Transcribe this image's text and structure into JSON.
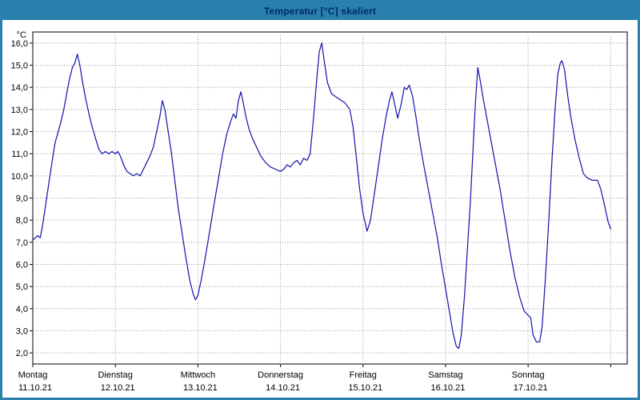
{
  "colors": {
    "frame": "#2a80ad",
    "title_text": "#002a68",
    "line": "#1111aa",
    "grid": "#9a9a9a",
    "axis": "#000000",
    "plot_bg": "#ffffff",
    "label_text": "#000000"
  },
  "chart_data": {
    "type": "line",
    "title": "Temperatur [°C] skaliert",
    "y_unit": "°C",
    "ylim": [
      1.5,
      16.5
    ],
    "xlim": [
      0,
      7.2
    ],
    "grid": true,
    "legend": "none",
    "yticks": [
      2,
      3,
      4,
      5,
      6,
      7,
      8,
      9,
      10,
      11,
      12,
      13,
      14,
      15,
      16
    ],
    "ytick_labels": [
      "2,0",
      "3,0",
      "4,0",
      "5,0",
      "6,0",
      "7,0",
      "8,0",
      "9,0",
      "10,0",
      "11,0",
      "12,0",
      "13,0",
      "14,0",
      "15,0",
      "16,0"
    ],
    "xticks": [
      0,
      1,
      2,
      3,
      4,
      5,
      6,
      7
    ],
    "x_gridlines": [
      1,
      2,
      3,
      4,
      5,
      6,
      7
    ],
    "x_categories": [
      {
        "day": "Montag",
        "date": "11.10.21",
        "x": 0
      },
      {
        "day": "Dienstag",
        "date": "12.10.21",
        "x": 1
      },
      {
        "day": "Mittwoch",
        "date": "13.10.21",
        "x": 2
      },
      {
        "day": "Donnerstag",
        "date": "14.10.21",
        "x": 3
      },
      {
        "day": "Freitag",
        "date": "15.10.21",
        "x": 4
      },
      {
        "day": "Samstag",
        "date": "16.10.21",
        "x": 5
      },
      {
        "day": "Sonntag",
        "date": "17.10.21",
        "x": 6
      }
    ],
    "series": [
      {
        "name": "Temperatur",
        "color": "#1111aa",
        "points": [
          [
            0.0,
            7.1
          ],
          [
            0.03,
            7.2
          ],
          [
            0.06,
            7.3
          ],
          [
            0.09,
            7.2
          ],
          [
            0.12,
            7.8
          ],
          [
            0.16,
            8.8
          ],
          [
            0.2,
            9.8
          ],
          [
            0.24,
            10.8
          ],
          [
            0.27,
            11.5
          ],
          [
            0.3,
            11.9
          ],
          [
            0.33,
            12.3
          ],
          [
            0.37,
            12.9
          ],
          [
            0.4,
            13.5
          ],
          [
            0.44,
            14.3
          ],
          [
            0.48,
            14.9
          ],
          [
            0.51,
            15.1
          ],
          [
            0.54,
            15.5
          ],
          [
            0.57,
            15.0
          ],
          [
            0.6,
            14.3
          ],
          [
            0.64,
            13.5
          ],
          [
            0.68,
            12.8
          ],
          [
            0.72,
            12.2
          ],
          [
            0.76,
            11.7
          ],
          [
            0.8,
            11.2
          ],
          [
            0.84,
            11.0
          ],
          [
            0.88,
            11.1
          ],
          [
            0.92,
            11.0
          ],
          [
            0.96,
            11.1
          ],
          [
            1.0,
            11.0
          ],
          [
            1.03,
            11.1
          ],
          [
            1.06,
            10.9
          ],
          [
            1.1,
            10.5
          ],
          [
            1.14,
            10.2
          ],
          [
            1.18,
            10.1
          ],
          [
            1.22,
            10.0
          ],
          [
            1.26,
            10.1
          ],
          [
            1.3,
            10.0
          ],
          [
            1.34,
            10.3
          ],
          [
            1.38,
            10.6
          ],
          [
            1.42,
            10.9
          ],
          [
            1.46,
            11.3
          ],
          [
            1.5,
            12.0
          ],
          [
            1.54,
            12.7
          ],
          [
            1.57,
            13.4
          ],
          [
            1.6,
            13.0
          ],
          [
            1.64,
            12.0
          ],
          [
            1.68,
            11.0
          ],
          [
            1.72,
            9.8
          ],
          [
            1.76,
            8.6
          ],
          [
            1.8,
            7.6
          ],
          [
            1.85,
            6.4
          ],
          [
            1.9,
            5.3
          ],
          [
            1.94,
            4.7
          ],
          [
            1.97,
            4.4
          ],
          [
            2.0,
            4.6
          ],
          [
            2.04,
            5.3
          ],
          [
            2.08,
            6.1
          ],
          [
            2.12,
            7.0
          ],
          [
            2.16,
            7.9
          ],
          [
            2.2,
            8.8
          ],
          [
            2.25,
            9.9
          ],
          [
            2.3,
            11.0
          ],
          [
            2.35,
            11.9
          ],
          [
            2.4,
            12.5
          ],
          [
            2.43,
            12.8
          ],
          [
            2.46,
            12.6
          ],
          [
            2.49,
            13.4
          ],
          [
            2.52,
            13.8
          ],
          [
            2.55,
            13.3
          ],
          [
            2.58,
            12.7
          ],
          [
            2.62,
            12.1
          ],
          [
            2.66,
            11.7
          ],
          [
            2.71,
            11.3
          ],
          [
            2.76,
            10.9
          ],
          [
            2.82,
            10.6
          ],
          [
            2.88,
            10.4
          ],
          [
            2.94,
            10.3
          ],
          [
            3.0,
            10.2
          ],
          [
            3.04,
            10.3
          ],
          [
            3.08,
            10.5
          ],
          [
            3.12,
            10.4
          ],
          [
            3.16,
            10.6
          ],
          [
            3.2,
            10.7
          ],
          [
            3.24,
            10.5
          ],
          [
            3.28,
            10.8
          ],
          [
            3.32,
            10.7
          ],
          [
            3.36,
            11.0
          ],
          [
            3.4,
            12.6
          ],
          [
            3.44,
            14.4
          ],
          [
            3.47,
            15.6
          ],
          [
            3.5,
            16.0
          ],
          [
            3.53,
            15.2
          ],
          [
            3.57,
            14.2
          ],
          [
            3.62,
            13.7
          ],
          [
            3.7,
            13.5
          ],
          [
            3.78,
            13.3
          ],
          [
            3.84,
            13.0
          ],
          [
            3.88,
            12.2
          ],
          [
            3.92,
            10.8
          ],
          [
            3.96,
            9.4
          ],
          [
            4.0,
            8.3
          ],
          [
            4.05,
            7.5
          ],
          [
            4.09,
            8.0
          ],
          [
            4.13,
            9.0
          ],
          [
            4.18,
            10.3
          ],
          [
            4.23,
            11.6
          ],
          [
            4.28,
            12.7
          ],
          [
            4.32,
            13.4
          ],
          [
            4.35,
            13.8
          ],
          [
            4.38,
            13.3
          ],
          [
            4.42,
            12.6
          ],
          [
            4.46,
            13.2
          ],
          [
            4.5,
            14.0
          ],
          [
            4.53,
            13.9
          ],
          [
            4.56,
            14.1
          ],
          [
            4.6,
            13.6
          ],
          [
            4.64,
            12.7
          ],
          [
            4.68,
            11.7
          ],
          [
            4.73,
            10.6
          ],
          [
            4.78,
            9.6
          ],
          [
            4.84,
            8.4
          ],
          [
            4.9,
            7.2
          ],
          [
            4.95,
            6.0
          ],
          [
            5.0,
            4.9
          ],
          [
            5.05,
            3.8
          ],
          [
            5.09,
            2.9
          ],
          [
            5.13,
            2.3
          ],
          [
            5.16,
            2.2
          ],
          [
            5.19,
            2.8
          ],
          [
            5.23,
            4.6
          ],
          [
            5.27,
            7.0
          ],
          [
            5.3,
            8.8
          ],
          [
            5.33,
            11.0
          ],
          [
            5.36,
            13.2
          ],
          [
            5.39,
            14.9
          ],
          [
            5.42,
            14.3
          ],
          [
            5.46,
            13.4
          ],
          [
            5.5,
            12.6
          ],
          [
            5.55,
            11.6
          ],
          [
            5.6,
            10.6
          ],
          [
            5.66,
            9.4
          ],
          [
            5.72,
            8.0
          ],
          [
            5.78,
            6.6
          ],
          [
            5.84,
            5.4
          ],
          [
            5.9,
            4.5
          ],
          [
            5.95,
            3.9
          ],
          [
            6.0,
            3.7
          ],
          [
            6.03,
            3.6
          ],
          [
            6.06,
            2.8
          ],
          [
            6.1,
            2.5
          ],
          [
            6.14,
            2.5
          ],
          [
            6.17,
            3.2
          ],
          [
            6.21,
            5.4
          ],
          [
            6.25,
            8.0
          ],
          [
            6.29,
            10.8
          ],
          [
            6.33,
            13.2
          ],
          [
            6.36,
            14.6
          ],
          [
            6.39,
            15.1
          ],
          [
            6.41,
            15.2
          ],
          [
            6.44,
            14.8
          ],
          [
            6.48,
            13.6
          ],
          [
            6.52,
            12.6
          ],
          [
            6.57,
            11.6
          ],
          [
            6.62,
            10.8
          ],
          [
            6.67,
            10.1
          ],
          [
            6.72,
            9.9
          ],
          [
            6.78,
            9.8
          ],
          [
            6.84,
            9.8
          ],
          [
            6.88,
            9.4
          ],
          [
            6.93,
            8.6
          ],
          [
            6.97,
            7.9
          ],
          [
            7.0,
            7.6
          ]
        ]
      }
    ]
  }
}
